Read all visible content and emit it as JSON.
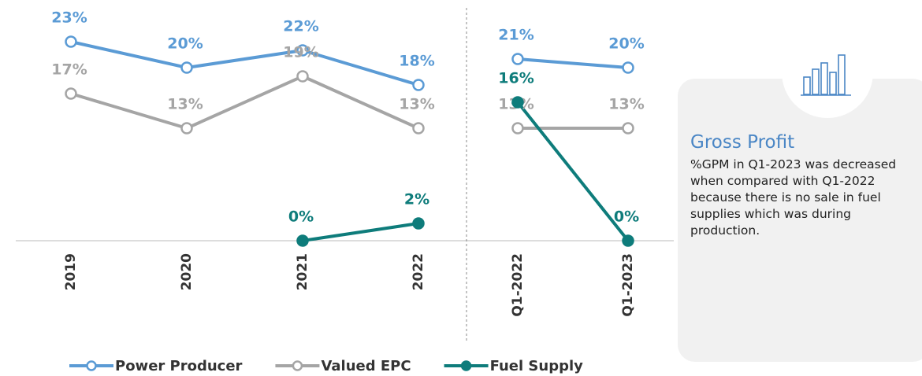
{
  "chart_data": [
    {
      "type": "line",
      "ylim": [
        0,
        25
      ],
      "categories": [
        "2019",
        "2020",
        "2021",
        "2022"
      ],
      "series": [
        {
          "name": "Power Producer",
          "color": "#5b9bd5",
          "marker": "hollow",
          "values": [
            23,
            20,
            22,
            18
          ],
          "value_labels": [
            "23%",
            "20%",
            "22%",
            "18%"
          ]
        },
        {
          "name": "Valued EPC",
          "color": "#a5a5a5",
          "marker": "hollow",
          "values": [
            17,
            13,
            19,
            13
          ],
          "value_labels": [
            "17%",
            "13%",
            "19%",
            "13%"
          ]
        },
        {
          "name": "Fuel Supply",
          "color": "#0e7c7b",
          "marker": "filled",
          "values": [
            null,
            null,
            0,
            2
          ],
          "value_labels": [
            null,
            null,
            "0%",
            "2%"
          ]
        }
      ]
    },
    {
      "type": "line",
      "ylim": [
        0,
        25
      ],
      "categories": [
        "Q1-2022",
        "Q1-2023"
      ],
      "series": [
        {
          "color": "#5b9bd5",
          "marker": "hollow",
          "values": [
            21,
            20
          ],
          "value_labels": [
            "21%",
            "20%"
          ]
        },
        {
          "color": "#a5a5a5",
          "marker": "hollow",
          "values": [
            13,
            13
          ],
          "value_labels": [
            "13%",
            "13%"
          ]
        },
        {
          "color": "#0e7c7b",
          "marker": "filled",
          "values": [
            16,
            0
          ],
          "value_labels": [
            "16%",
            "0%"
          ]
        }
      ]
    }
  ],
  "panel": {
    "title": "Gross Profit",
    "text": "%GPM in Q1-2023 was decreased when compared with Q1-2022 because there is no sale in fuel supplies which was during production."
  }
}
